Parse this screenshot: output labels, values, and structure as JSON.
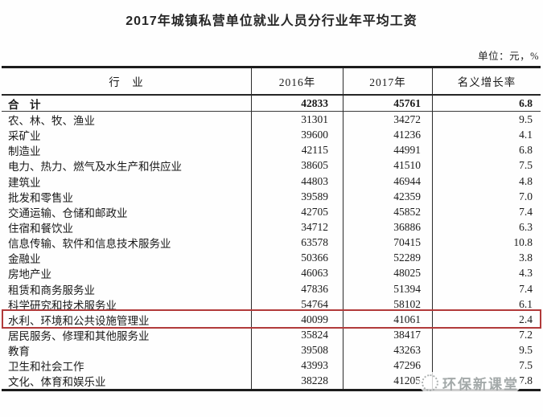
{
  "title": "2017年城镇私营单位就业人员分行业年平均工资",
  "unit_note": "单位：元，%",
  "table": {
    "columns": [
      "行　业",
      "2016年",
      "2017年",
      "名义增长率"
    ],
    "rows": [
      {
        "industry": "合　计",
        "y2016": "42833",
        "y2017": "45761",
        "growth": "6.8",
        "bold": true
      },
      {
        "industry": "农、林、牧、渔业",
        "y2016": "31301",
        "y2017": "34272",
        "growth": "9.5"
      },
      {
        "industry": "采矿业",
        "y2016": "39600",
        "y2017": "41236",
        "growth": "4.1"
      },
      {
        "industry": "制造业",
        "y2016": "42115",
        "y2017": "44991",
        "growth": "6.8"
      },
      {
        "industry": "电力、热力、燃气及水生产和供应业",
        "y2016": "38605",
        "y2017": "41510",
        "growth": "7.5"
      },
      {
        "industry": "建筑业",
        "y2016": "44803",
        "y2017": "46944",
        "growth": "4.8"
      },
      {
        "industry": "批发和零售业",
        "y2016": "39589",
        "y2017": "42359",
        "growth": "7.0"
      },
      {
        "industry": "交通运输、仓储和邮政业",
        "y2016": "42705",
        "y2017": "45852",
        "growth": "7.4"
      },
      {
        "industry": "住宿和餐饮业",
        "y2016": "34712",
        "y2017": "36886",
        "growth": "6.3"
      },
      {
        "industry": "信息传输、软件和信息技术服务业",
        "y2016": "63578",
        "y2017": "70415",
        "growth": "10.8"
      },
      {
        "industry": "金融业",
        "y2016": "50366",
        "y2017": "52289",
        "growth": "3.8"
      },
      {
        "industry": "房地产业",
        "y2016": "46063",
        "y2017": "48025",
        "growth": "4.3"
      },
      {
        "industry": "租赁和商务服务业",
        "y2016": "47836",
        "y2017": "51394",
        "growth": "7.4"
      },
      {
        "industry": "科学研究和技术服务业",
        "y2016": "54764",
        "y2017": "58102",
        "growth": "6.1"
      },
      {
        "industry": "水利、环境和公共设施管理业",
        "y2016": "40099",
        "y2017": "41061",
        "growth": "2.4",
        "highlight": true
      },
      {
        "industry": "居民服务、修理和其他服务业",
        "y2016": "35824",
        "y2017": "38417",
        "growth": "7.2"
      },
      {
        "industry": "教育",
        "y2016": "39508",
        "y2017": "43263",
        "growth": "9.5"
      },
      {
        "industry": "卫生和社会工作",
        "y2016": "43993",
        "y2017": "47296",
        "growth": "7.5"
      },
      {
        "industry": "文化、体育和娱乐业",
        "y2016": "38228",
        "y2017": "41205",
        "growth": "7.8"
      }
    ]
  },
  "watermark": {
    "text": "环保新课堂"
  },
  "colors": {
    "highlight_border": "#b13a3a",
    "table_line": "#1c1c1c",
    "watermark_text": "#9aa0a0",
    "title_text": "#262626"
  }
}
